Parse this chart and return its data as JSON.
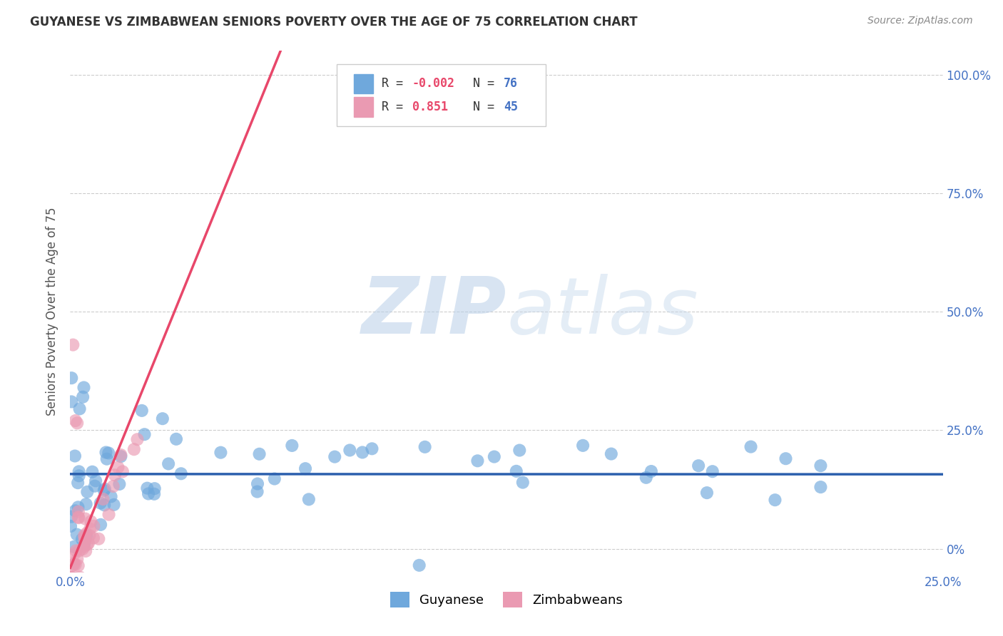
{
  "title": "GUYANESE VS ZIMBABWEAN SENIORS POVERTY OVER THE AGE OF 75 CORRELATION CHART",
  "source": "Source: ZipAtlas.com",
  "ylabel": "Seniors Poverty Over the Age of 75",
  "xlim": [
    0.0,
    0.25
  ],
  "ylim": [
    -0.02,
    1.02
  ],
  "plot_ylim": [
    -0.05,
    1.05
  ],
  "xticks": [
    0.0,
    0.25
  ],
  "xticklabels": [
    "0.0%",
    "25.0%"
  ],
  "yticks": [
    0.0,
    0.25,
    0.5,
    0.75,
    1.0
  ],
  "yticklabels_right": [
    "0%",
    "25.0%",
    "50.0%",
    "75.0%",
    "100.0%"
  ],
  "guyanese_color": "#6fa8dc",
  "zimbabwean_color": "#ea9ab2",
  "guyanese_line_color": "#2b5fad",
  "zimbabwean_line_color": "#e8476a",
  "R_guyanese": -0.002,
  "N_guyanese": 76,
  "R_zimbabwean": 0.851,
  "N_zimbabwean": 45,
  "watermark_zip": "ZIP",
  "watermark_atlas": "atlas",
  "background_color": "#ffffff",
  "grid_color": "#cccccc",
  "title_color": "#333333",
  "axis_label_color": "#555555",
  "tick_color": "#4472c4",
  "source_color": "#888888",
  "legend_R_color": "#e8476a",
  "legend_N_color": "#4472c4",
  "legend_text_color": "#333333"
}
